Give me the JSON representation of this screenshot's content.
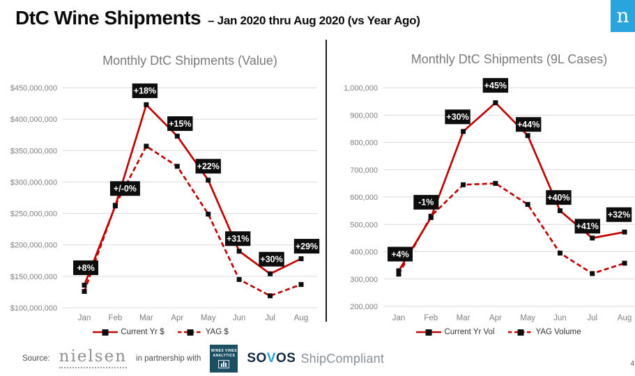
{
  "header": {
    "title": "DtC Wine Shipments",
    "subtitle": "– Jan 2020 thru Aug 2020 (vs Year Ago)",
    "logo_letter": "n"
  },
  "colors": {
    "line_red": "#C00000",
    "marker": "#0d0d0d",
    "label_bg": "#0d0d0d",
    "label_text": "#ffffff",
    "gridline": "#d9d9d9",
    "axis_text": "#7f7f7f",
    "title_text": "#7a7a7a",
    "nielsen_blue": "#2aa4dc",
    "wva_navy": "#1d4f63",
    "sovos_navy": "#15293e",
    "sovos_blue": "#2d9fd8",
    "shipcompliant_gray": "#8a9098"
  },
  "chart_data": [
    {
      "type": "line",
      "title": "Monthly DtC Shipments (Value)",
      "categories": [
        "Jan",
        "Feb",
        "Mar",
        "Apr",
        "May",
        "Jun",
        "Jul",
        "Aug"
      ],
      "series": [
        {
          "name": "Current Yr $",
          "style": "solid",
          "values": [
            136000000,
            262000000,
            423000000,
            373000000,
            303000000,
            190000000,
            154000000,
            178000000
          ]
        },
        {
          "name": "YAG $",
          "style": "dashed",
          "values": [
            126000000,
            263000000,
            357000000,
            325000000,
            249000000,
            145000000,
            119000000,
            137000000
          ]
        }
      ],
      "point_labels": [
        "+8%",
        "+/-0%",
        "+18%",
        "+15%",
        "+22%",
        "+31%",
        "+30%",
        "+29%"
      ],
      "ylim": [
        100000000,
        450000000
      ],
      "ytick_step": 50000000,
      "ytick_prefix": "$",
      "grid": true,
      "legend_position": "bottom"
    },
    {
      "type": "line",
      "title": "Monthly DtC Shipments (9L Cases)",
      "categories": [
        "Jan",
        "Feb",
        "Mar",
        "Apr",
        "May",
        "Jun",
        "Jul",
        "Aug"
      ],
      "series": [
        {
          "name": "Current Yr Vol",
          "style": "solid",
          "values": [
            330000,
            525000,
            840000,
            945000,
            825000,
            550000,
            450000,
            472000
          ]
        },
        {
          "name": "YAG Volume",
          "style": "dashed",
          "values": [
            318000,
            530000,
            645000,
            650000,
            573000,
            395000,
            320000,
            358000
          ]
        }
      ],
      "point_labels": [
        "+4%",
        "-1%",
        "+30%",
        "+45%",
        "+44%",
        "+40%",
        "+41%",
        "+32%"
      ],
      "ylim": [
        200000,
        1000000
      ],
      "ytick_step": 100000,
      "ytick_prefix": "",
      "grid": true,
      "legend_position": "bottom"
    }
  ],
  "footer": {
    "source_label": "Source:",
    "nielsen_wordmark": "nielsen",
    "partnership_text": "in partnership with",
    "wva_line1": "WINES VINES",
    "wva_line2": "ANALYTICS",
    "sovos_pre": "SO",
    "sovos_v": "V",
    "sovos_post": "OS",
    "shipcompliant_text": "ShipCompliant",
    "page_number": "4"
  }
}
